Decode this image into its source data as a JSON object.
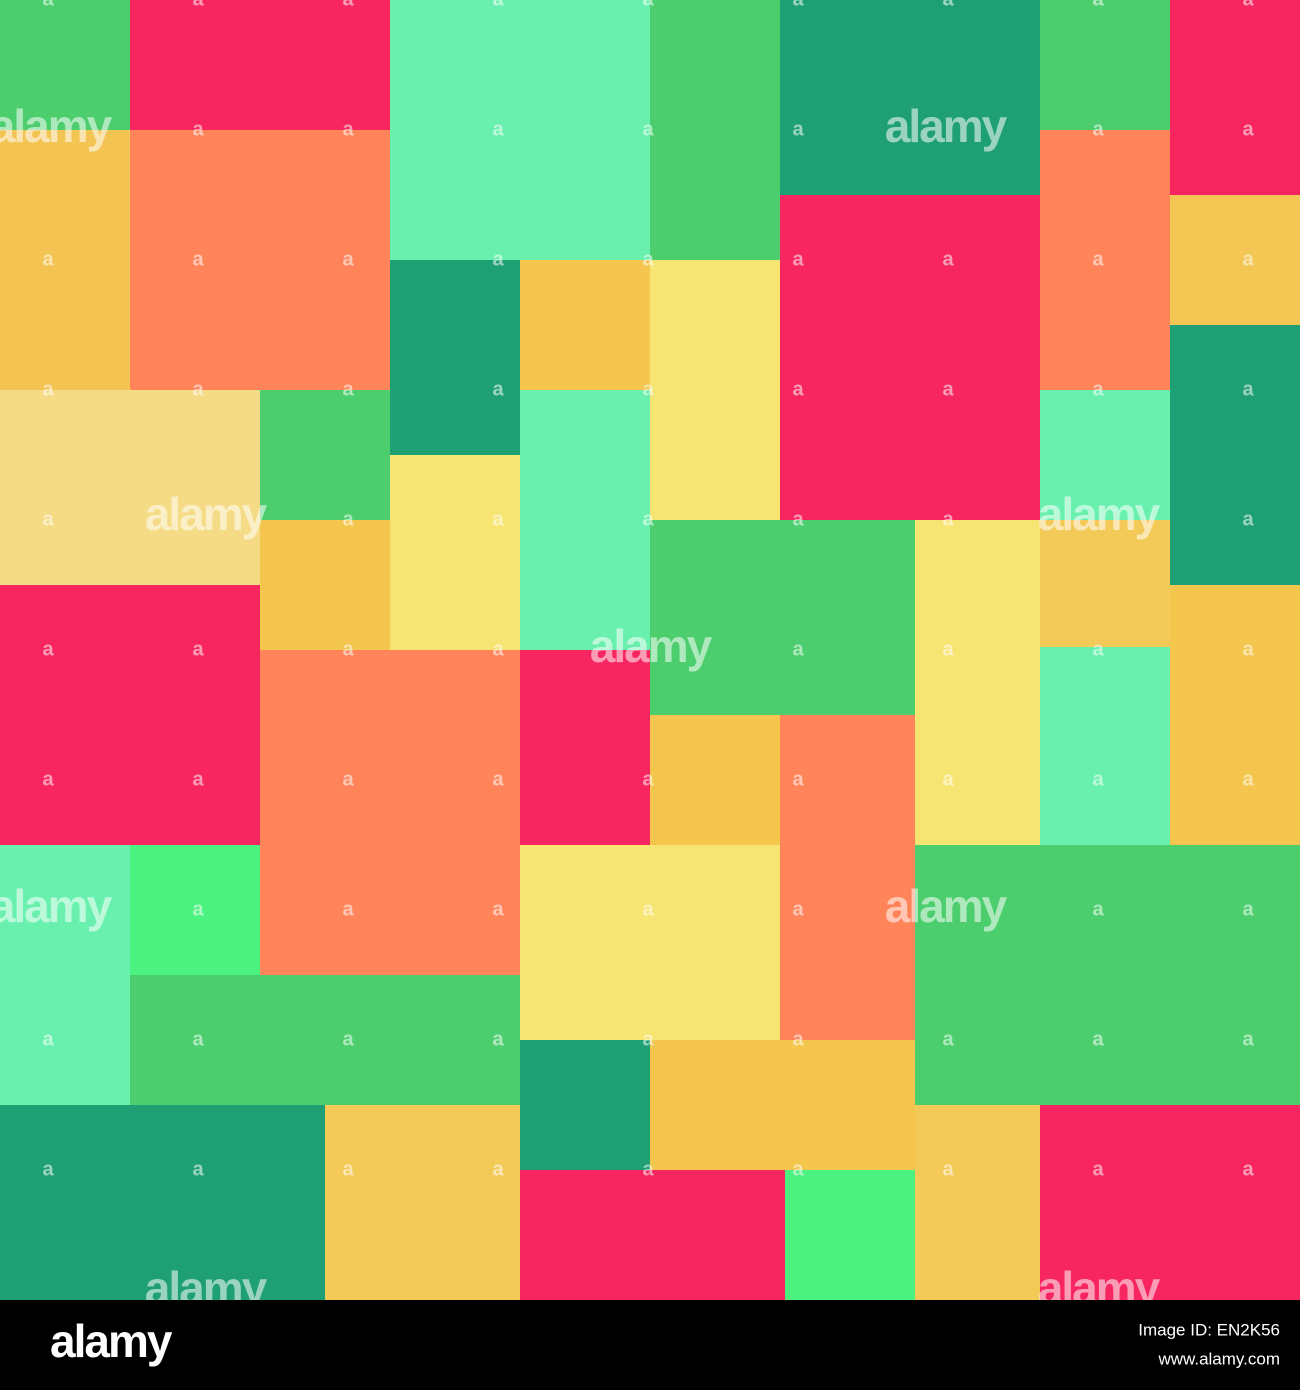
{
  "watermark": "alamy",
  "watermark_mark": "a",
  "footer": {
    "brand": "alamy",
    "image_id": "Image ID: EN2K56",
    "url": "www.alamy.com"
  }
}
